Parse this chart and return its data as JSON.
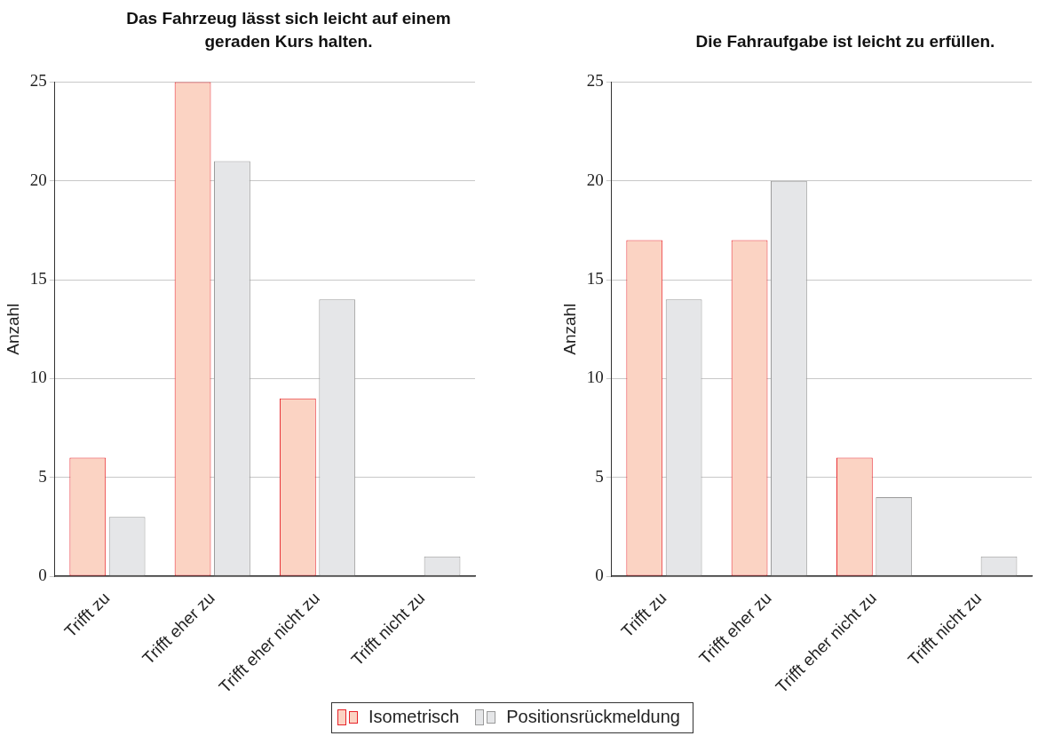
{
  "chart_data": [
    {
      "type": "bar",
      "title": "Das Fahrzeug lässt sich leicht auf einem geraden Kurs halten.",
      "ylabel": "Anzahl",
      "categories": [
        "Trifft zu",
        "Trifft eher zu",
        "Trifft eher nicht zu",
        "Trifft nicht zu"
      ],
      "series": [
        {
          "name": "Isometrisch",
          "color": "#fbd3c3",
          "values": [
            6,
            25,
            9,
            0
          ]
        },
        {
          "name": "Positionsrückmeldung",
          "color": "#e5e6e8",
          "values": [
            3,
            21,
            14,
            1
          ]
        }
      ],
      "ylim": [
        0,
        25
      ],
      "yticks": [
        0,
        5,
        10,
        15,
        20,
        25
      ],
      "grid": "y",
      "legend": "bottom"
    },
    {
      "type": "bar",
      "title": "Die Fahraufgabe ist leicht zu erfüllen.",
      "ylabel": "Anzahl",
      "categories": [
        "Trifft zu",
        "Trifft eher zu",
        "Trifft eher nicht zu",
        "Trifft nicht zu"
      ],
      "series": [
        {
          "name": "Isometrisch",
          "color": "#fbd3c3",
          "values": [
            17,
            17,
            6,
            0
          ]
        },
        {
          "name": "Positionsrückmeldung",
          "color": "#e5e6e8",
          "values": [
            14,
            20,
            4,
            1
          ]
        }
      ],
      "ylim": [
        0,
        25
      ],
      "yticks": [
        0,
        5,
        10,
        15,
        20,
        25
      ],
      "grid": "y",
      "legend": "bottom"
    }
  ]
}
